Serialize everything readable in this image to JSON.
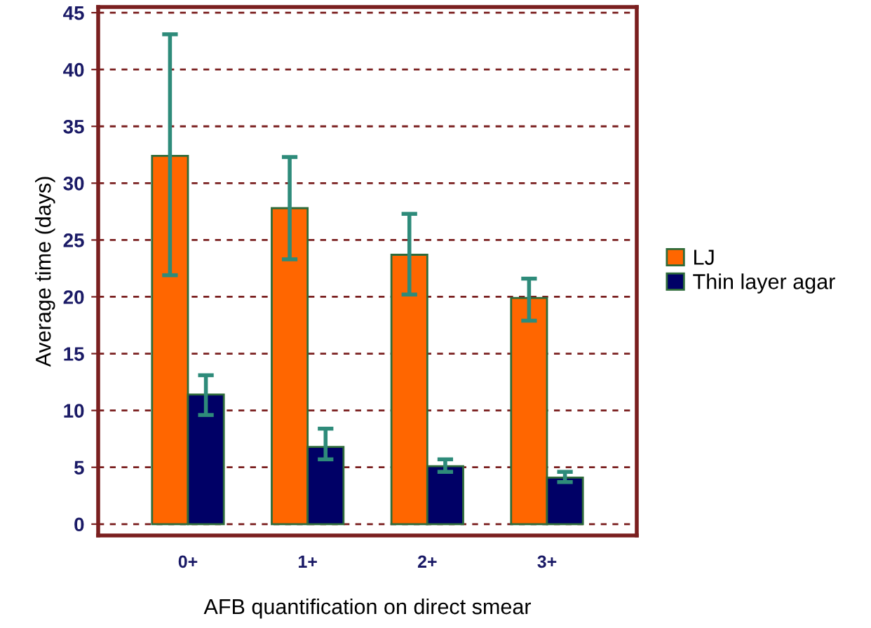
{
  "chart_data": {
    "type": "bar",
    "xlabel": "AFB quantification on direct smear",
    "ylabel": "Average time (days)",
    "categories": [
      "0+",
      "1+",
      "2+",
      "3+"
    ],
    "series": [
      {
        "name": "LJ",
        "color": "#ff6600",
        "values": [
          32.4,
          27.8,
          23.7,
          19.9
        ],
        "errors": [
          [
            21.9,
            43.1
          ],
          [
            23.3,
            32.3
          ],
          [
            20.2,
            27.3
          ],
          [
            17.9,
            21.6
          ]
        ]
      },
      {
        "name": "Thin layer agar",
        "color": "#000066",
        "values": [
          11.4,
          6.8,
          5.1,
          4.1
        ],
        "errors": [
          [
            9.6,
            13.1
          ],
          [
            5.7,
            8.4
          ],
          [
            4.6,
            5.7
          ],
          [
            3.7,
            4.6
          ]
        ]
      }
    ],
    "ylim": [
      -1,
      45.5
    ],
    "yticks": [
      0,
      5,
      10,
      15,
      20,
      25,
      30,
      35,
      40,
      45
    ],
    "grid": "y",
    "legend": "right"
  }
}
